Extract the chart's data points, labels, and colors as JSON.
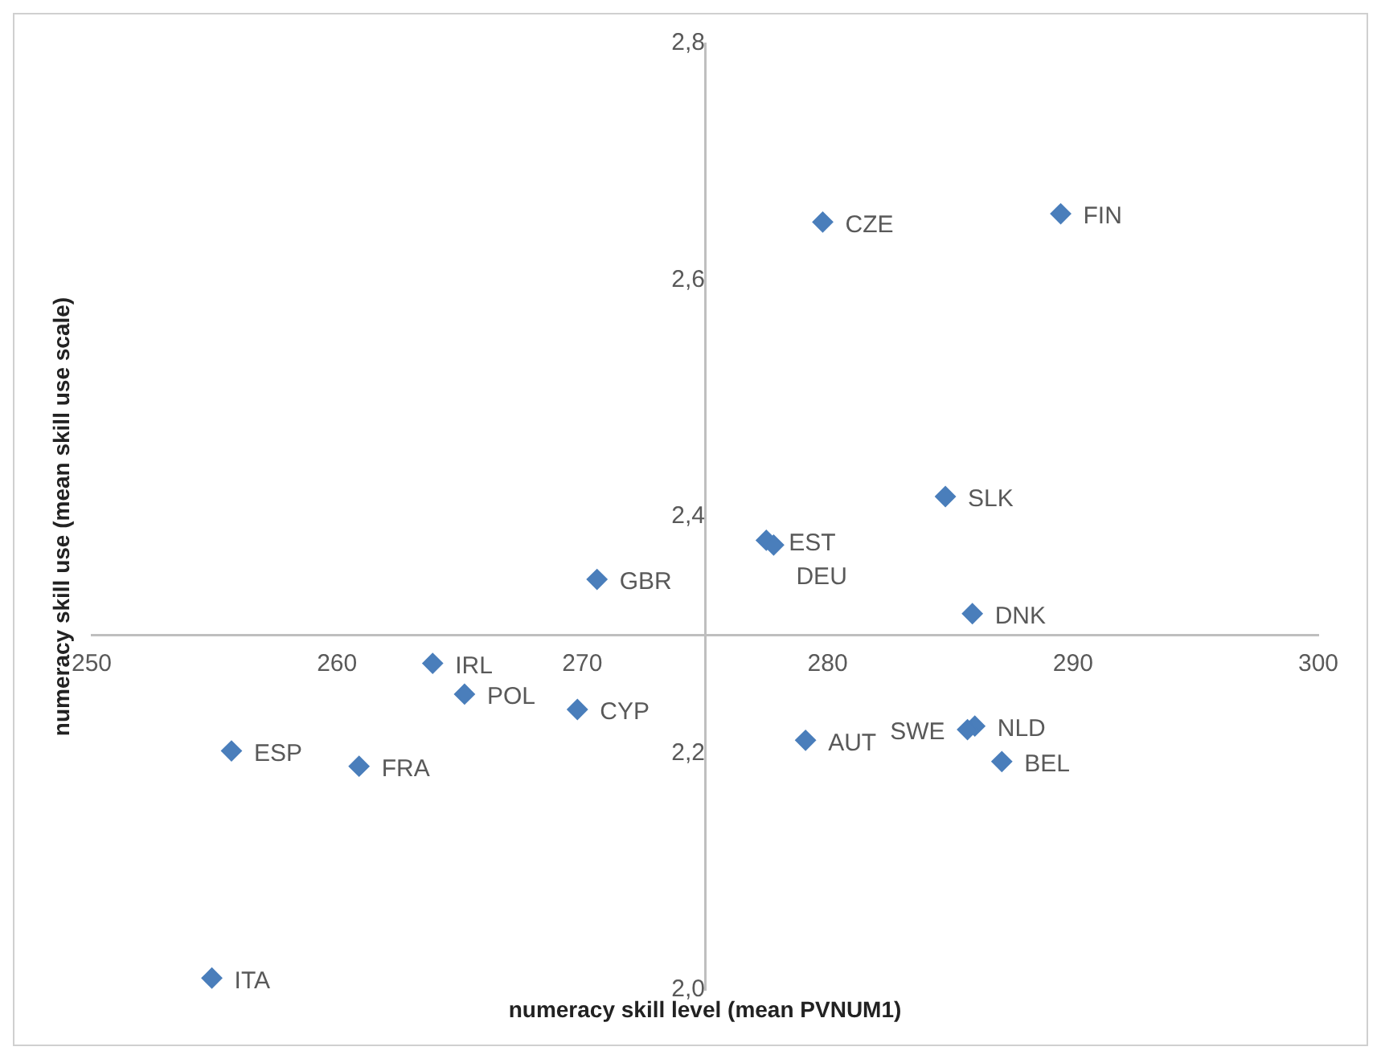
{
  "chart_data": {
    "type": "scatter",
    "xlabel": "numeracy skill level (mean PVNUM1)",
    "ylabel": "numeracy skill use (mean skill use scale)",
    "x": [
      279.8,
      289.5,
      284.8,
      277.5,
      277.8,
      270.6,
      285.9,
      263.9,
      265.2,
      269.8,
      255.7,
      260.9,
      279.1,
      286.0,
      285.7,
      287.1,
      254.9
    ],
    "series": [
      {
        "color": "#4a7ebb",
        "values": [
          2.649,
          2.656,
          2.417,
          2.38,
          2.376,
          2.347,
          2.318,
          2.276,
          2.25,
          2.237,
          2.202,
          2.189,
          2.211,
          2.223,
          2.22,
          2.193,
          2.01
        ]
      }
    ],
    "annotations": [
      {
        "text": "CZE",
        "x": 279.8,
        "y": 2.649
      },
      {
        "text": "FIN",
        "x": 289.5,
        "y": 2.656
      },
      {
        "text": "SLK",
        "x": 284.8,
        "y": 2.417
      },
      {
        "text": "EST",
        "x": 277.5,
        "y": 2.38
      },
      {
        "text": "DEU",
        "x": 277.8,
        "y": 2.376
      },
      {
        "text": "GBR",
        "x": 270.6,
        "y": 2.347
      },
      {
        "text": "DNK",
        "x": 285.9,
        "y": 2.318
      },
      {
        "text": "IRL",
        "x": 263.9,
        "y": 2.276
      },
      {
        "text": "POL",
        "x": 265.2,
        "y": 2.25
      },
      {
        "text": "CYP",
        "x": 269.8,
        "y": 2.237
      },
      {
        "text": "ESP",
        "x": 255.7,
        "y": 2.202
      },
      {
        "text": "FRA",
        "x": 260.9,
        "y": 2.189
      },
      {
        "text": "AUT",
        "x": 279.1,
        "y": 2.211
      },
      {
        "text": "NLD",
        "x": 286.0,
        "y": 2.223
      },
      {
        "text": "SWE",
        "x": 285.7,
        "y": 2.22
      },
      {
        "text": "BEL",
        "x": 287.1,
        "y": 2.193
      },
      {
        "text": "ITA",
        "x": 254.9,
        "y": 2.01
      }
    ],
    "xlim": [
      250,
      300
    ],
    "xticks": [
      250,
      260,
      270,
      280,
      290,
      300
    ],
    "ylim": [
      2.0,
      2.8
    ],
    "yticks": [
      {
        "value": 2.0,
        "label": "2,0"
      },
      {
        "value": 2.2,
        "label": "2,2"
      },
      {
        "value": 2.4,
        "label": "2,4"
      },
      {
        "value": 2.6,
        "label": "2,6"
      },
      {
        "value": 2.8,
        "label": "2,8"
      }
    ],
    "marker": "diamond",
    "grid": false,
    "legend": false
  }
}
